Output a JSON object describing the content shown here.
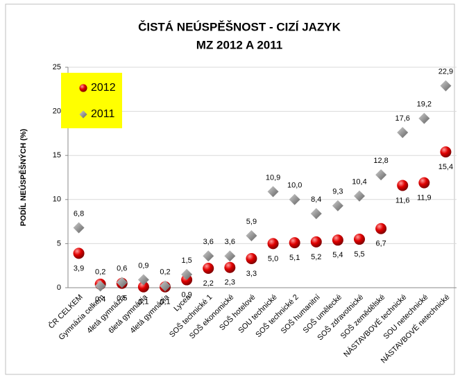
{
  "chart_data": {
    "type": "scatter",
    "title": "ČISTÁ NEÚSPĚŠNOST - CIZÍ JAZYK",
    "subtitle": "MZ 2012 A 2011",
    "y_label": "PODÍL NEÚSPĚŠNÝCH (%)",
    "categories": [
      "ČR CELKEM",
      "Gymnázia celkem",
      "4letá gymnázia",
      "6letá gymnázia",
      "4letá gymnázia",
      "Lycea",
      "SOŠ technické 1",
      "SOŠ ekonomické",
      "SOŠ hotelové",
      "SOU technické",
      "SOŠ technické 2",
      "SOŠ humanitní",
      "SOŠ umělecké",
      "SOŠ zdravotnické",
      "SOŠ zemědělské",
      "NÁSTAVBOVÉ technické",
      "SOU netechnické",
      "NÁSTAVBOVÉ netechnické"
    ],
    "series": [
      {
        "name": "2012",
        "color": "#e00000",
        "marker": "circle",
        "values": [
          3.9,
          0.4,
          0.5,
          0.1,
          0.1,
          0.9,
          2.2,
          2.3,
          3.3,
          5.0,
          5.1,
          5.2,
          5.4,
          5.5,
          6.7,
          11.6,
          11.9,
          15.4
        ],
        "value_labels": [
          "3,9",
          "0,4",
          "0,5",
          "0,1",
          "0,1",
          "0,9",
          "2,2",
          "2,3",
          "3,3",
          "5,0",
          "5,1",
          "5,2",
          "5,4",
          "5,5",
          "6,7",
          "11,6",
          "11,9",
          "15,4"
        ]
      },
      {
        "name": "2011",
        "color": "#8c8c8c",
        "marker": "diamond",
        "values": [
          6.8,
          0.2,
          0.6,
          0.9,
          0.2,
          1.5,
          3.6,
          3.6,
          5.9,
          10.9,
          10.0,
          8.4,
          9.3,
          10.4,
          12.8,
          17.6,
          19.2,
          22.9
        ],
        "value_labels": [
          "6,8",
          "0,2",
          "0,6",
          "0,9",
          "0,2",
          "1,5",
          "3,6",
          "3,6",
          "5,9",
          "10,9",
          "10,0",
          "8,4",
          "9,3",
          "10,4",
          "12,8",
          "17,6",
          "19,2",
          "22,9"
        ]
      }
    ],
    "ylim": [
      0,
      25
    ],
    "yticks": [
      0,
      5,
      10,
      15,
      20,
      25
    ],
    "grid": true,
    "legend": "upper left"
  }
}
